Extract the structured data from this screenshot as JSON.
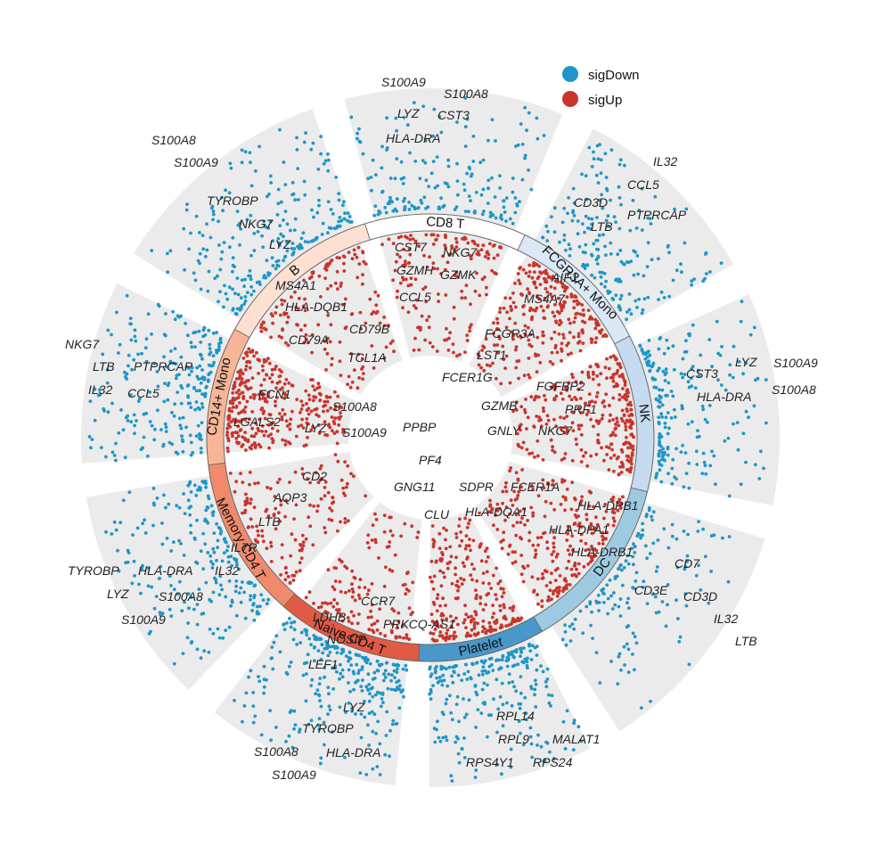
{
  "chart_data": {
    "type": "scatter",
    "layout": "circular",
    "title": "",
    "legend": {
      "position": "top-right",
      "items": [
        {
          "label": "sigDown",
          "color": "#1f96c8"
        },
        {
          "label": "sigUp",
          "color": "#c8352d"
        }
      ]
    },
    "colors": {
      "sigDown": "#1f96c8",
      "sigUp": "#c8352d",
      "sector_background": "#ebebeb"
    },
    "sectors": [
      {
        "name": "CD8 T",
        "color": "#ffffff",
        "up_genes": [
          "CST7",
          "NKG7",
          "GZMH",
          "GZMK",
          "CCL5"
        ],
        "down_genes": [
          "S100A9",
          "S100A8",
          "LYZ",
          "CST3",
          "HLA-DRA"
        ],
        "n_up": 160,
        "n_down": 180
      },
      {
        "name": "FCGR3A+ Mono",
        "color": "#dbe9f6",
        "up_genes": [
          "AIF1",
          "MS4A7",
          "FCGR3A",
          "LST1",
          "FCER1G"
        ],
        "down_genes": [
          "IL32",
          "CCL5",
          "CD3D",
          "PTPRCAP",
          "LTB"
        ],
        "n_up": 260,
        "n_down": 190
      },
      {
        "name": "NK",
        "color": "#c6dbef",
        "up_genes": [
          "FGFBP2",
          "GZMB",
          "PRF1",
          "GNLY",
          "NKG7"
        ],
        "down_genes": [
          "LYZ",
          "S100A9",
          "CST3",
          "S100A8",
          "HLA-DRA"
        ],
        "n_up": 300,
        "n_down": 210
      },
      {
        "name": "DC",
        "color": "#9ecae1",
        "up_genes": [
          "FCER1A",
          "HLA-DQA1",
          "HLA-DPB1",
          "HLA-DPA1",
          "HLA-DRB1"
        ],
        "down_genes": [
          "CD7",
          "CD3E",
          "CD3D",
          "IL32",
          "LTB"
        ],
        "n_up": 260,
        "n_down": 150
      },
      {
        "name": "Platelet",
        "color": "#4a98c9",
        "up_genes": [
          "PPBP",
          "PF4",
          "GNG11",
          "SDPR",
          "CLU"
        ],
        "down_genes": [
          "RPL14",
          "RPL9",
          "MALAT1",
          "RPS4Y1",
          "RPS24"
        ],
        "n_up": 240,
        "n_down": 240
      },
      {
        "name": "Naive CD4 T",
        "color": "#e15a45",
        "up_genes": [
          "CCR7",
          "LDHB",
          "PRKCQ-AS1",
          "NOSIP",
          "LEF1"
        ],
        "down_genes": [
          "LYZ",
          "TYROBP",
          "S100A8",
          "HLA-DRA",
          "S100A9"
        ],
        "n_up": 130,
        "n_down": 280
      },
      {
        "name": "Memory CD4 T",
        "color": "#f08a6c",
        "up_genes": [
          "CD2",
          "AQP3",
          "LTB",
          "IL7R",
          "IL32"
        ],
        "down_genes": [
          "TYROBP",
          "HLA-DRA",
          "LYZ",
          "S100A8",
          "S100A9"
        ],
        "n_up": 140,
        "n_down": 220
      },
      {
        "name": "CD14+ Mono",
        "color": "#f7b597",
        "up_genes": [
          "FCN1",
          "LGALS2",
          "LYZ",
          "S100A8",
          "S100A9"
        ],
        "down_genes": [
          "NKG7",
          "LTB",
          "PTPRCAP",
          "IL32",
          "CCL5"
        ],
        "n_up": 320,
        "n_down": 230
      },
      {
        "name": "B",
        "color": "#fde0d2",
        "up_genes": [
          "MS4A1",
          "HLA-DQB1",
          "CD79A",
          "CD79B",
          "TCL1A"
        ],
        "down_genes": [
          "S100A8",
          "S100A9",
          "TYROBP",
          "NKG7",
          "LYZ"
        ],
        "n_up": 150,
        "n_down": 240
      }
    ]
  }
}
